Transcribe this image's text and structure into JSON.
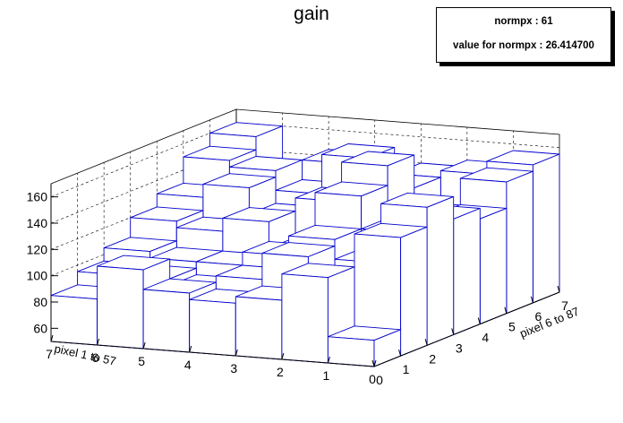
{
  "chart_data": {
    "type": "lego3d",
    "title": "gain",
    "xlabel": "pixel 1 to 57",
    "ylabel": "pixel 6 to 87",
    "x_ticks": [
      "0",
      "1",
      "2",
      "3",
      "4",
      "5",
      "6",
      "7"
    ],
    "y_ticks": [
      "0",
      "1",
      "2",
      "3",
      "4",
      "5",
      "6",
      "7"
    ],
    "z_ticks": [
      "60",
      "80",
      "100",
      "120",
      "140",
      "160"
    ],
    "zlim": [
      50,
      170
    ],
    "grid": "on",
    "bar_line_color": "#0000cc",
    "bar_fill_color": "#ffffff",
    "values": [
      [
        70,
        140,
        155,
        138,
        130,
        150,
        155
      ],
      [
        115,
        100,
        110,
        125,
        100,
        120,
        145
      ],
      [
        95,
        120,
        125,
        150,
        165,
        140,
        140
      ],
      [
        90,
        100,
        110,
        105,
        135,
        160,
        125
      ],
      [
        95,
        90,
        100,
        125,
        120,
        130,
        145
      ],
      [
        110,
        95,
        100,
        115,
        140,
        145,
        135
      ],
      [
        85,
        95,
        105,
        120,
        130,
        150,
        160
      ]
    ]
  },
  "stats": {
    "line1": "normpx : 61",
    "line2": "value for normpx : 26.414700"
  }
}
